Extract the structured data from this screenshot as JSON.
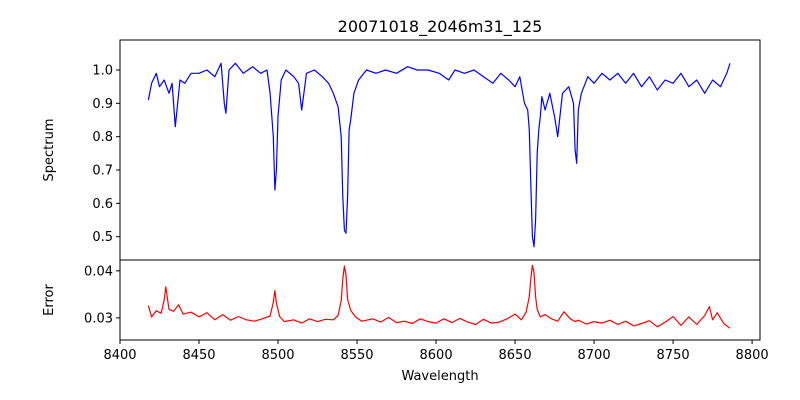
{
  "chart_data": [
    {
      "type": "line",
      "title": "20071018_2046m31_125",
      "xlabel": "",
      "ylabel": "Spectrum",
      "xlim": [
        8400,
        8805
      ],
      "ylim": [
        0.43,
        1.09
      ],
      "xticks": [
        8400,
        8450,
        8500,
        8550,
        8600,
        8650,
        8700,
        8750,
        8800
      ],
      "yticks": [
        0.5,
        0.6,
        0.7,
        0.8,
        0.9,
        1.0
      ],
      "ytick_labels": [
        "0.5",
        "0.6",
        "0.7",
        "0.8",
        "0.9",
        "1.0"
      ],
      "grid": false,
      "series": [
        {
          "color": "#0000ff",
          "x": [
            8418,
            8420,
            8423,
            8425,
            8428,
            8431,
            8433,
            8435,
            8438,
            8441,
            8445,
            8450,
            8455,
            8460,
            8464,
            8466,
            8467,
            8469,
            8473,
            8478,
            8484,
            8489,
            8493,
            8495,
            8497,
            8498,
            8499,
            8500,
            8502,
            8505,
            8510,
            8513,
            8515,
            8518,
            8523,
            8528,
            8532,
            8535,
            8538,
            8540,
            8541,
            8542,
            8543,
            8544,
            8545,
            8546,
            8548,
            8551,
            8556,
            8562,
            8568,
            8575,
            8582,
            8588,
            8595,
            8602,
            8608,
            8612,
            8618,
            8624,
            8630,
            8636,
            8641,
            8646,
            8650,
            8653,
            8656,
            8658,
            8659,
            8660,
            8661,
            8662,
            8663,
            8664,
            8665,
            8666,
            8667,
            8669,
            8672,
            8675,
            8677,
            8680,
            8684,
            8687,
            8688,
            8689,
            8690,
            8692,
            8696,
            8700,
            8705,
            8710,
            8715,
            8720,
            8725,
            8730,
            8735,
            8740,
            8745,
            8750,
            8755,
            8760,
            8765,
            8770,
            8775,
            8780,
            8784,
            8786
          ],
          "values": [
            0.91,
            0.96,
            0.99,
            0.95,
            0.97,
            0.93,
            0.96,
            0.83,
            0.97,
            0.96,
            0.99,
            0.99,
            1.0,
            0.98,
            1.02,
            0.9,
            0.87,
            1.0,
            1.02,
            0.99,
            1.01,
            0.99,
            1.0,
            0.93,
            0.8,
            0.64,
            0.7,
            0.86,
            0.97,
            1.0,
            0.98,
            0.96,
            0.88,
            0.99,
            1.0,
            0.98,
            0.96,
            0.93,
            0.89,
            0.8,
            0.62,
            0.52,
            0.51,
            0.62,
            0.82,
            0.85,
            0.93,
            0.97,
            1.0,
            0.99,
            1.0,
            0.99,
            1.01,
            1.0,
            1.0,
            0.99,
            0.97,
            1.0,
            0.99,
            1.0,
            0.98,
            0.96,
            0.99,
            0.97,
            0.95,
            0.98,
            0.9,
            0.88,
            0.82,
            0.65,
            0.5,
            0.47,
            0.55,
            0.75,
            0.82,
            0.86,
            0.92,
            0.88,
            0.93,
            0.86,
            0.8,
            0.93,
            0.95,
            0.9,
            0.76,
            0.72,
            0.88,
            0.93,
            0.98,
            0.96,
            0.99,
            0.97,
            0.99,
            0.96,
            0.99,
            0.95,
            0.98,
            0.94,
            0.97,
            0.96,
            0.99,
            0.95,
            0.97,
            0.93,
            0.97,
            0.95,
            0.99,
            1.02
          ]
        }
      ]
    },
    {
      "type": "line",
      "title": "",
      "xlabel": "Wavelength",
      "ylabel": "Error",
      "xlim": [
        8400,
        8805
      ],
      "ylim": [
        0.0253,
        0.0423
      ],
      "xticks": [
        8400,
        8450,
        8500,
        8550,
        8600,
        8650,
        8700,
        8750,
        8800
      ],
      "yticks": [
        0.03,
        0.04
      ],
      "ytick_labels": [
        "0.03",
        "0.04"
      ],
      "grid": false,
      "series": [
        {
          "color": "#ff0000",
          "x": [
            8418,
            8420,
            8423,
            8426,
            8428,
            8429,
            8431,
            8434,
            8437,
            8440,
            8445,
            8450,
            8455,
            8460,
            8465,
            8470,
            8475,
            8480,
            8485,
            8490,
            8495,
            8497,
            8498,
            8499,
            8501,
            8504,
            8510,
            8515,
            8520,
            8525,
            8530,
            8535,
            8538,
            8540,
            8541,
            8542,
            8543,
            8544,
            8546,
            8549,
            8553,
            8560,
            8565,
            8570,
            8575,
            8580,
            8585,
            8590,
            8595,
            8600,
            8605,
            8610,
            8615,
            8620,
            8625,
            8630,
            8635,
            8640,
            8645,
            8650,
            8654,
            8657,
            8659,
            8660,
            8661,
            8662,
            8663,
            8664,
            8666,
            8669,
            8673,
            8677,
            8681,
            8685,
            8688,
            8690,
            8695,
            8700,
            8705,
            8710,
            8715,
            8720,
            8725,
            8730,
            8735,
            8740,
            8745,
            8750,
            8755,
            8760,
            8765,
            8770,
            8773,
            8775,
            8778,
            8782,
            8786
          ],
          "values": [
            0.0326,
            0.0302,
            0.0315,
            0.031,
            0.0338,
            0.0366,
            0.0318,
            0.0314,
            0.0328,
            0.0308,
            0.0312,
            0.0302,
            0.0311,
            0.0296,
            0.0307,
            0.0295,
            0.0303,
            0.0296,
            0.0293,
            0.0298,
            0.0304,
            0.0333,
            0.0358,
            0.0332,
            0.0303,
            0.0292,
            0.0296,
            0.0289,
            0.0298,
            0.0292,
            0.0297,
            0.0296,
            0.0305,
            0.0336,
            0.0383,
            0.041,
            0.0392,
            0.034,
            0.0316,
            0.0302,
            0.0293,
            0.0298,
            0.0291,
            0.0301,
            0.029,
            0.0293,
            0.0288,
            0.0298,
            0.0292,
            0.0289,
            0.0298,
            0.029,
            0.0299,
            0.0291,
            0.0286,
            0.0297,
            0.0289,
            0.0291,
            0.0298,
            0.0308,
            0.0296,
            0.0312,
            0.0345,
            0.0385,
            0.0412,
            0.0396,
            0.0345,
            0.0318,
            0.0302,
            0.0307,
            0.0298,
            0.0293,
            0.0313,
            0.0298,
            0.0292,
            0.0295,
            0.0287,
            0.0292,
            0.0289,
            0.0295,
            0.0286,
            0.0293,
            0.0283,
            0.0288,
            0.0294,
            0.0281,
            0.0291,
            0.0303,
            0.0284,
            0.0302,
            0.0286,
            0.0305,
            0.0324,
            0.0296,
            0.0311,
            0.0288,
            0.0278
          ]
        }
      ]
    }
  ]
}
